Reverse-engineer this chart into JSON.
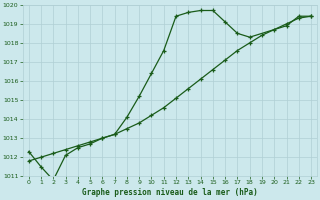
{
  "title": "Graphe pression niveau de la mer (hPa)",
  "background_color": "#cce8ec",
  "grid_color": "#b0cfd4",
  "line_color": "#1a5c1a",
  "x_values": [
    0,
    1,
    2,
    3,
    4,
    5,
    6,
    7,
    8,
    9,
    10,
    11,
    12,
    13,
    14,
    15,
    16,
    17,
    18,
    19,
    20,
    21,
    22,
    23
  ],
  "series1": [
    1012.3,
    1011.5,
    1010.8,
    1012.1,
    1012.5,
    1012.7,
    1013.0,
    1013.2,
    1014.1,
    1015.2,
    1016.4,
    1017.6,
    1019.4,
    1019.6,
    1019.7,
    1019.7,
    1019.1,
    1018.5,
    1018.3,
    null,
    null,
    1018.9,
    1019.4,
    1019.4
  ],
  "series2": [
    1011.8,
    1012.0,
    1012.2,
    1012.4,
    1012.6,
    1012.8,
    1013.0,
    1013.2,
    1013.5,
    1013.8,
    1014.2,
    1014.6,
    1015.1,
    1015.6,
    1016.1,
    1016.6,
    1017.1,
    1017.6,
    1018.0,
    1018.4,
    1018.7,
    1019.0,
    1019.3,
    1019.4
  ],
  "ylim": [
    1011.0,
    1020.0
  ],
  "xlim": [
    -0.5,
    23.5
  ],
  "yticks": [
    1011,
    1012,
    1013,
    1014,
    1015,
    1016,
    1017,
    1018,
    1019,
    1020
  ],
  "xticks": [
    0,
    1,
    2,
    3,
    4,
    5,
    6,
    7,
    8,
    9,
    10,
    11,
    12,
    13,
    14,
    15,
    16,
    17,
    18,
    19,
    20,
    21,
    22,
    23
  ]
}
